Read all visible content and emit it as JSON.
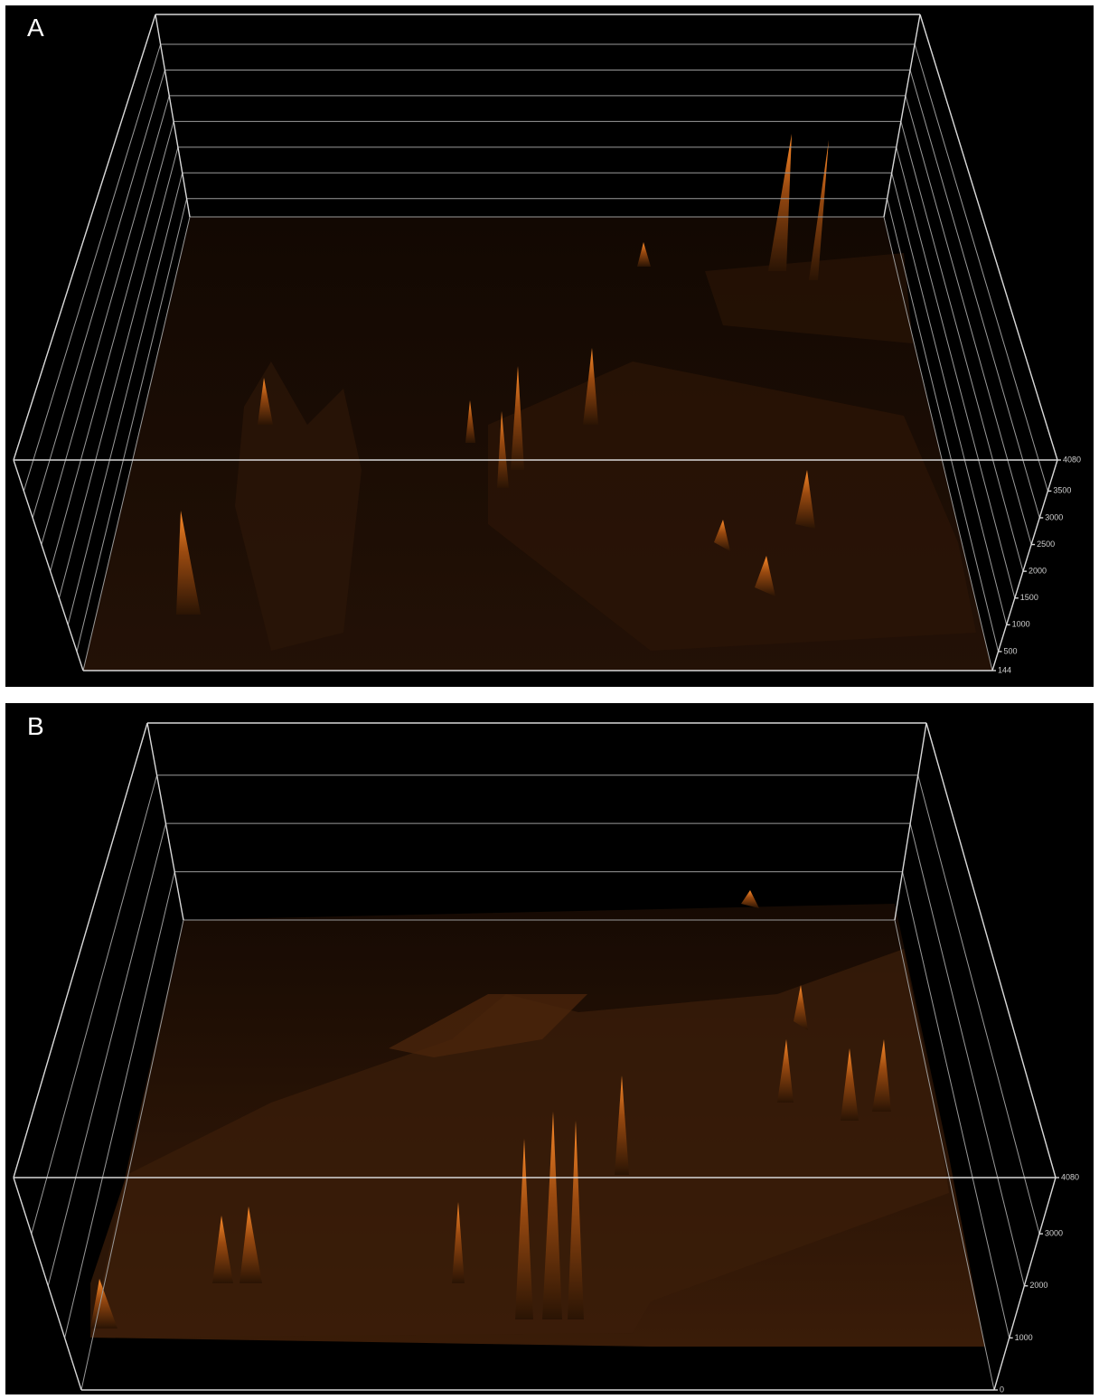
{
  "chart_data": [
    {
      "type": "surface",
      "panel_label": "A",
      "zlim": [
        144,
        4080
      ],
      "zticks": [
        144,
        500,
        1000,
        1500,
        2000,
        2500,
        3000,
        3500,
        4080
      ]
    },
    {
      "type": "surface",
      "panel_label": "B",
      "zlim": [
        0,
        4080
      ],
      "zticks": [
        0,
        1000,
        2000,
        3000,
        4080
      ]
    }
  ]
}
